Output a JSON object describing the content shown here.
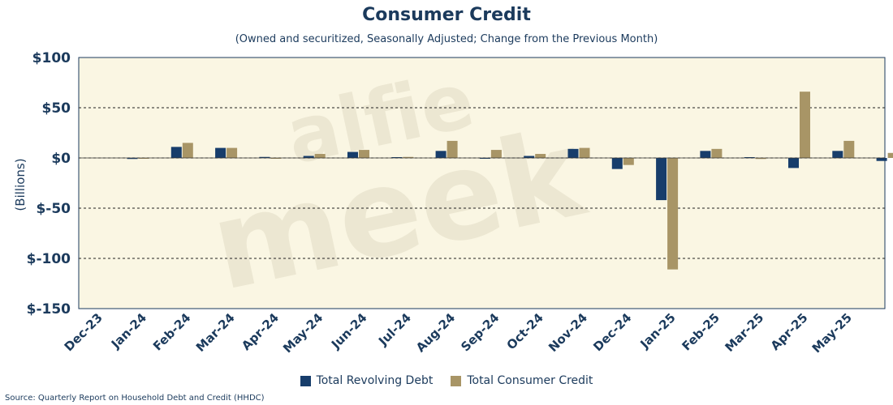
{
  "chart_data": {
    "type": "bar",
    "title": "Consumer Credit",
    "subtitle": "(Owned and securitized, Seasonally Adjusted; Change from the Previous Month)",
    "ylabel": "(Billions)",
    "xlabel": "",
    "ylim": [
      -150,
      100
    ],
    "yticks": [
      100,
      50,
      0,
      -50,
      -100,
      -150
    ],
    "ytick_labels": [
      "$100",
      "$50",
      "$0",
      "$-50",
      "$-100",
      "$-150"
    ],
    "grid": "dashed horizontal",
    "categories": [
      "Dec-23",
      "Jan-24",
      "Feb-24",
      "Mar-24",
      "Apr-24",
      "May-24",
      "Jun-24",
      "Jul-24",
      "Aug-24",
      "Sep-24",
      "Oct-24",
      "Nov-24",
      "Dec-24",
      "Jan-25",
      "Feb-25",
      "Mar-25",
      "Apr-25",
      "May-25"
    ],
    "series": [
      {
        "name": "Total Revolving Debt",
        "color": "#173d6b",
        "values": [
          -1,
          11,
          10,
          1,
          2,
          6,
          0.5,
          7,
          -0.5,
          2,
          9,
          -11,
          -42,
          7,
          0.5,
          -10,
          7,
          -3
        ]
      },
      {
        "name": "Total Consumer Credit",
        "color": "#a89566",
        "values": [
          -0.5,
          15,
          10,
          -0.5,
          4,
          8,
          1,
          17,
          8,
          4,
          10,
          -7,
          -111,
          9,
          -1,
          66,
          17,
          5
        ]
      }
    ],
    "legend_position": "bottom-center"
  },
  "watermark": {
    "line1": "alfie",
    "line2": "meek"
  },
  "source": "Source: Quarterly Report on Household Debt and Credit (HHDC)",
  "colors": {
    "plot_bg": "#faf6e3",
    "axis": "#1b3a5c"
  }
}
